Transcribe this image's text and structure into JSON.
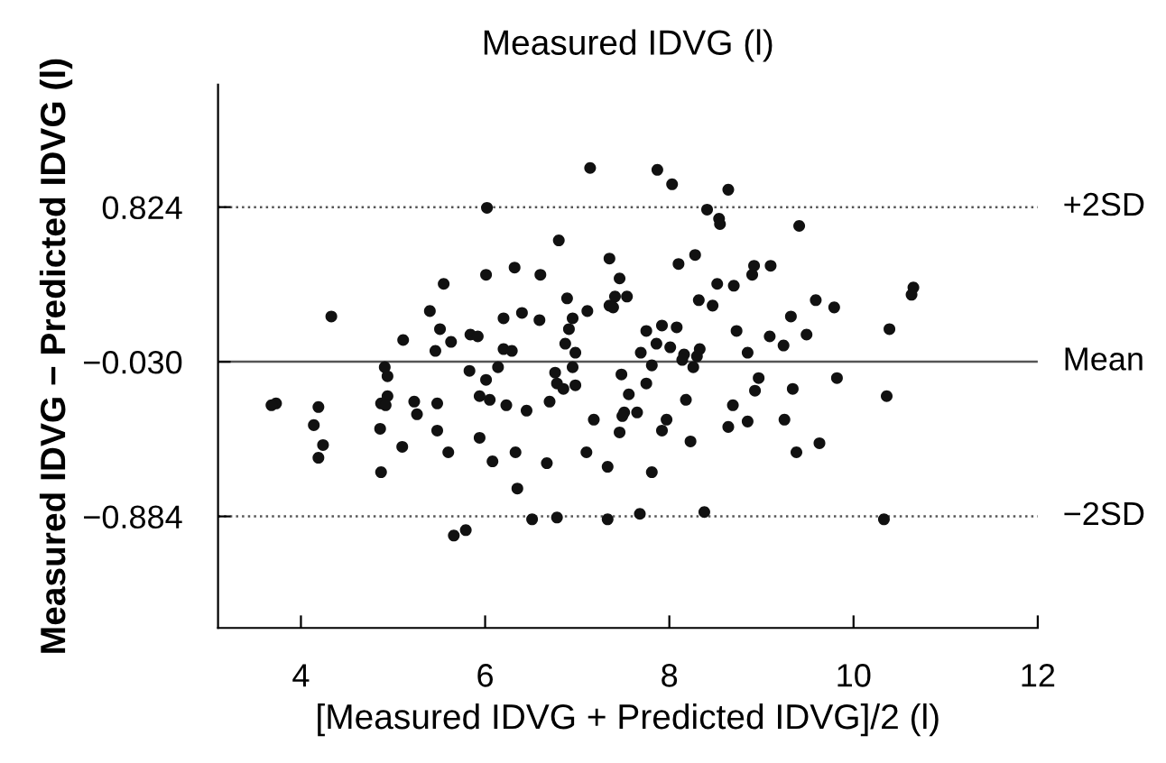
{
  "chart_data": {
    "type": "scatter",
    "title": "Measured IDVG (l)",
    "xlabel": "[Measured IDVG + Predicted IDVG]/2 (l)",
    "ylabel": "Measured IDVG − Predicted IDVG (l)",
    "xlim": [
      3.1,
      12
    ],
    "xticks": [
      4,
      6,
      8,
      10,
      12
    ],
    "ylim": [
      -1.5,
      1.5
    ],
    "yticks": [
      0.824,
      {
        "value": -0.03,
        "label": "−0.030"
      },
      {
        "value": -0.884,
        "label": "−0.884"
      }
    ],
    "grid": false,
    "marker": "circle",
    "ref_lines": [
      {
        "axis": "y",
        "value": 0.824,
        "label": "+2SD",
        "color": "#555555",
        "line_style": "dotted"
      },
      {
        "axis": "y",
        "value": -0.03,
        "label": "Mean",
        "color": "#555555",
        "line_style": "solid"
      },
      {
        "axis": "y",
        "value": -0.884,
        "label": "−2SD",
        "color": "#555555",
        "line_style": "dotted"
      }
    ],
    "series": [
      {
        "color": "#111111",
        "x": [
          7.14,
          6.02,
          6.8,
          7.35,
          6.32,
          6.01,
          6.6,
          5.55,
          6.89,
          7.11,
          7.35,
          4.33,
          5.4,
          5.51,
          6.2,
          6.4,
          6.59,
          6.95,
          6.91,
          5.11,
          5.84,
          5.92,
          5.63,
          7.87,
          8.03,
          8.64,
          8.41,
          8.54,
          8.55,
          9.41,
          8.1,
          8.28,
          7.46,
          8.92,
          8.9,
          9.1,
          8.52,
          8.7,
          7.41,
          7.54,
          7.39,
          8.32,
          8.47,
          9.59,
          9.79,
          10.65,
          10.63,
          9.32,
          7.75,
          7.92,
          8.08,
          8.73,
          9.09,
          9.49,
          10.39,
          5.46,
          6.2,
          6.29,
          6.87,
          6.98,
          4.91,
          4.94,
          5.83,
          6.14,
          6.01,
          6.76,
          6.78,
          6.85,
          6.98,
          6.95,
          3.73,
          3.68,
          4.19,
          4.87,
          4.94,
          4.92,
          5.23,
          5.48,
          5.94,
          6.05,
          6.23,
          6.45,
          6.7,
          5.26,
          7.18,
          4.14,
          4.86,
          5.48,
          5.94,
          4.24,
          5.1,
          5.6,
          4.19,
          6.33,
          7.1,
          6.08,
          6.67,
          7.33,
          4.87,
          6.35,
          6.51,
          6.78,
          7.33,
          5.66,
          5.79,
          7.69,
          7.86,
          8.01,
          8.16,
          8.33,
          8.3,
          8.14,
          8.26,
          7.81,
          8.85,
          9.24,
          7.48,
          7.75,
          7.56,
          8.97,
          8.93,
          9.34,
          9.82,
          10.36,
          8.18,
          7.51,
          7.49,
          7.65,
          8.69,
          7.97,
          7.92,
          7.46,
          8.64,
          8.85,
          9.25,
          8.23,
          9.38,
          9.63,
          7.81,
          7.68,
          8.38,
          10.33
        ],
        "values": [
          1.04,
          0.82,
          0.64,
          0.54,
          0.49,
          0.45,
          0.45,
          0.4,
          0.32,
          0.25,
          0.28,
          0.22,
          0.25,
          0.15,
          0.21,
          0.24,
          0.2,
          0.21,
          0.15,
          0.09,
          0.12,
          0.11,
          0.08,
          1.03,
          0.95,
          0.92,
          0.81,
          0.76,
          0.73,
          0.72,
          0.51,
          0.56,
          0.43,
          0.5,
          0.45,
          0.5,
          0.4,
          0.39,
          0.33,
          0.33,
          0.27,
          0.31,
          0.28,
          0.31,
          0.27,
          0.38,
          0.34,
          0.22,
          0.14,
          0.17,
          0.16,
          0.14,
          0.11,
          0.12,
          0.15,
          0.03,
          0.04,
          0.03,
          0.07,
          0.02,
          -0.06,
          -0.11,
          -0.08,
          -0.06,
          -0.13,
          -0.09,
          -0.15,
          -0.18,
          -0.16,
          -0.06,
          -0.26,
          -0.27,
          -0.28,
          -0.26,
          -0.22,
          -0.27,
          -0.25,
          -0.26,
          -0.22,
          -0.24,
          -0.27,
          -0.3,
          -0.25,
          -0.32,
          -0.35,
          -0.38,
          -0.4,
          -0.41,
          -0.45,
          -0.49,
          -0.5,
          -0.53,
          -0.56,
          -0.53,
          -0.53,
          -0.58,
          -0.59,
          -0.61,
          -0.64,
          -0.73,
          -0.9,
          -0.89,
          -0.9,
          -0.99,
          -0.96,
          0.02,
          0.07,
          0.05,
          0.01,
          0.04,
          0.0,
          -0.02,
          -0.06,
          -0.05,
          0.02,
          0.06,
          -0.1,
          -0.15,
          -0.21,
          -0.12,
          -0.19,
          -0.18,
          -0.12,
          -0.22,
          -0.24,
          -0.31,
          -0.33,
          -0.31,
          -0.27,
          -0.35,
          -0.41,
          -0.42,
          -0.39,
          -0.36,
          -0.35,
          -0.47,
          -0.53,
          -0.48,
          -0.64,
          -0.87,
          -0.86,
          -0.9
        ]
      }
    ]
  }
}
